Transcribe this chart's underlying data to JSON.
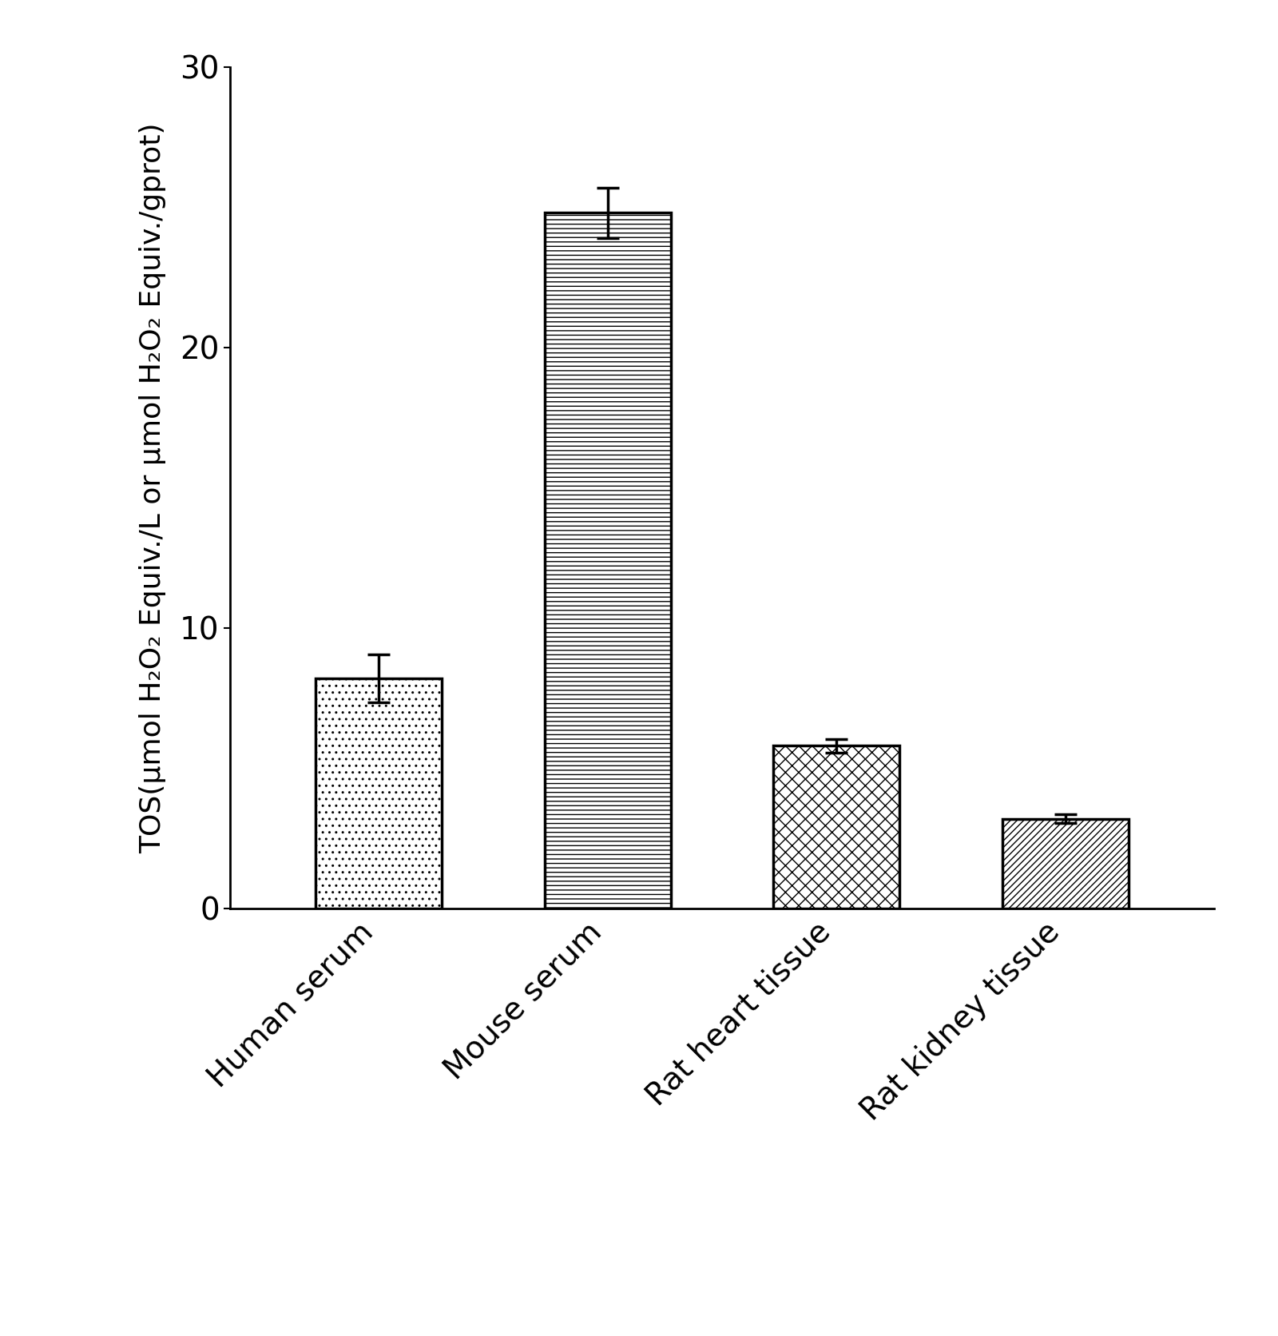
{
  "categories": [
    "Human serum",
    "Mouse serum",
    "Rat heart tissue",
    "Rat kidney tissue"
  ],
  "values": [
    8.2,
    24.8,
    5.8,
    3.2
  ],
  "errors": [
    0.85,
    0.9,
    0.25,
    0.15
  ],
  "ylabel": "TOS(μmol H₂O₂ Equiv./L or μmol H₂O₂ Equiv./gprot)",
  "ylim": [
    0,
    30
  ],
  "yticks": [
    0,
    10,
    20,
    30
  ],
  "background_color": "#ffffff",
  "bar_edge_color": "#000000",
  "bar_fill_color": "#ffffff",
  "error_color": "#000000",
  "hatch_patterns": [
    "..",
    "---",
    "xx",
    "////"
  ],
  "bar_width": 0.55,
  "tick_fontsize": 28,
  "label_fontsize": 26,
  "linewidth": 2.5
}
